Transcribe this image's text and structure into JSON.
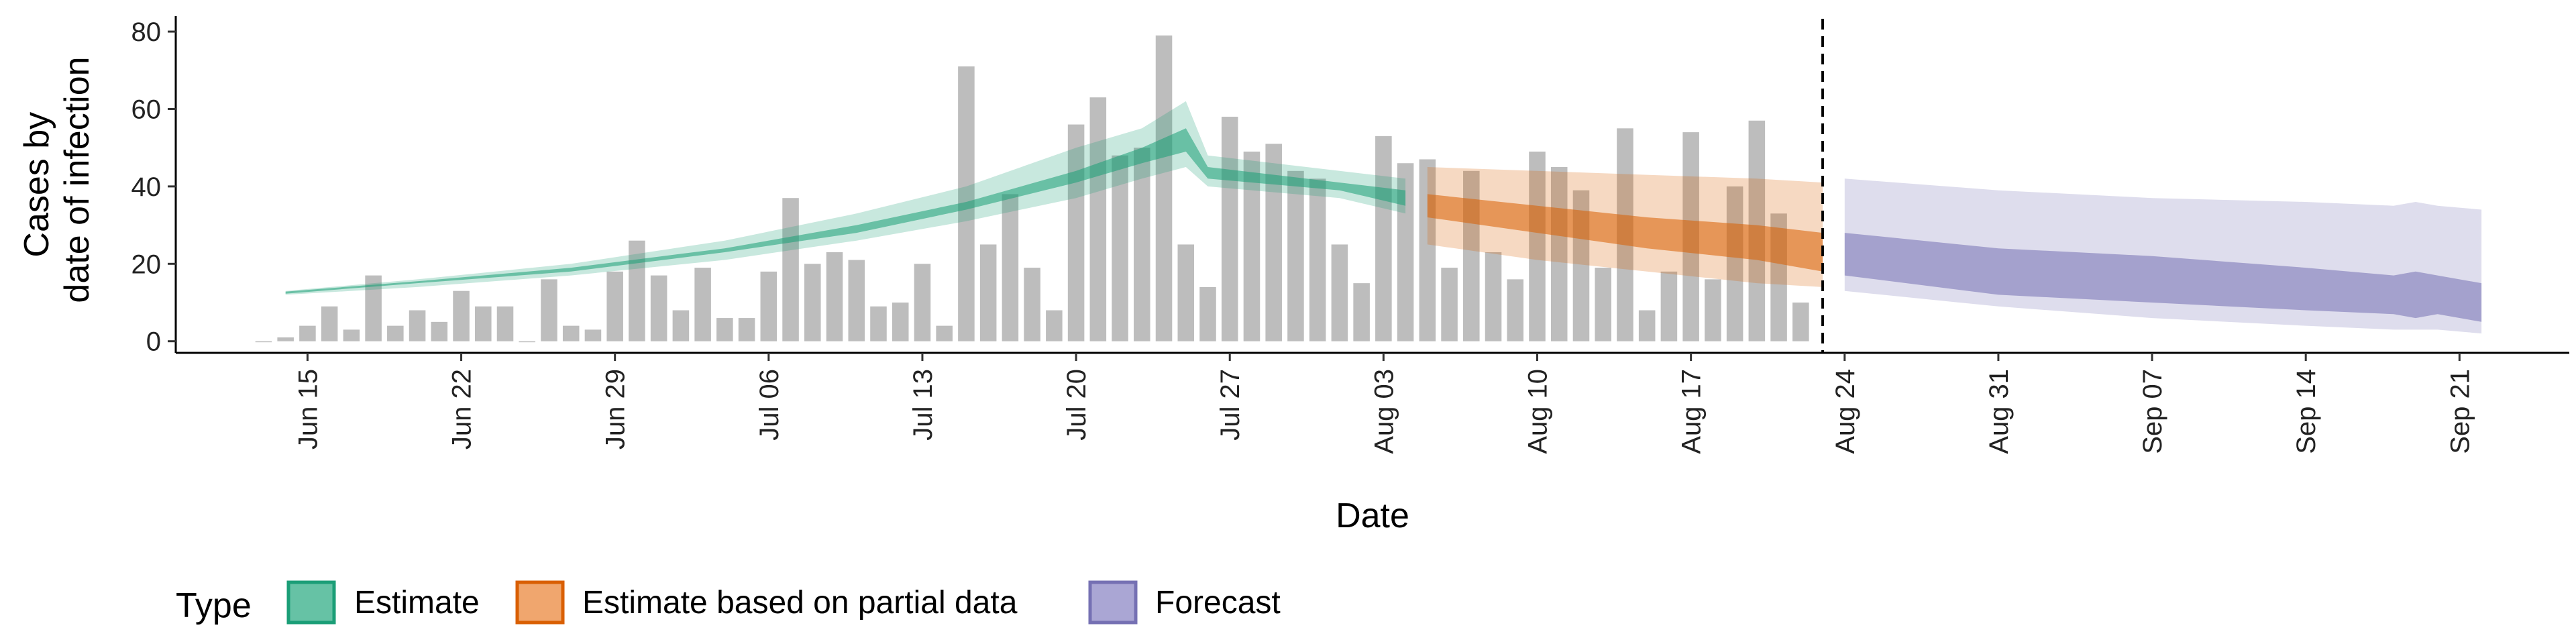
{
  "chart_data": {
    "type": "bar",
    "xlabel": "Date",
    "ylabel_lines": [
      "Cases by",
      "date of infection"
    ],
    "x_range": [
      "2020-06-09",
      "2020-09-26"
    ],
    "ylim": [
      -3,
      84
    ],
    "y_ticks": [
      0,
      20,
      40,
      60,
      80
    ],
    "x_ticks": [
      {
        "date": "2020-06-15",
        "label": "Jun 15"
      },
      {
        "date": "2020-06-22",
        "label": "Jun 22"
      },
      {
        "date": "2020-06-29",
        "label": "Jun 29"
      },
      {
        "date": "2020-07-06",
        "label": "Jul 06"
      },
      {
        "date": "2020-07-13",
        "label": "Jul 13"
      },
      {
        "date": "2020-07-20",
        "label": "Jul 20"
      },
      {
        "date": "2020-07-27",
        "label": "Jul 27"
      },
      {
        "date": "2020-08-03",
        "label": "Aug 03"
      },
      {
        "date": "2020-08-10",
        "label": "Aug 10"
      },
      {
        "date": "2020-08-17",
        "label": "Aug 17"
      },
      {
        "date": "2020-08-24",
        "label": "Aug 24"
      },
      {
        "date": "2020-08-31",
        "label": "Aug 31"
      },
      {
        "date": "2020-09-07",
        "label": "Sep 07"
      },
      {
        "date": "2020-09-14",
        "label": "Sep 14"
      },
      {
        "date": "2020-09-21",
        "label": "Sep 21"
      }
    ],
    "grid": false,
    "legend_position": "bottom-left",
    "legend_title": "Type",
    "legend": [
      {
        "label": "Estimate",
        "fill": "#66c2a5",
        "stroke": "#1b9e77"
      },
      {
        "label": "Estimate based on partial data",
        "fill": "#f0a66e",
        "stroke": "#d95f02"
      },
      {
        "label": "Forecast",
        "fill": "#aaa6d4",
        "stroke": "#7570b3"
      }
    ],
    "vline_date": "2020-08-23",
    "bar_color": "#bdbdbd",
    "reported_cases": {
      "start_date": "2020-06-13",
      "values": [
        0,
        1,
        4,
        9,
        3,
        17,
        4,
        8,
        5,
        13,
        9,
        9,
        0,
        16,
        4,
        3,
        18,
        26,
        17,
        8,
        19,
        6,
        6,
        18,
        37,
        20,
        23,
        21,
        9,
        10,
        20,
        4,
        71,
        25,
        38,
        19,
        8,
        56,
        63,
        48,
        50,
        79,
        25,
        14,
        58,
        49,
        51,
        44,
        42,
        25,
        15,
        53,
        46,
        47,
        19,
        44,
        23,
        16,
        49,
        45,
        39,
        19,
        55,
        8,
        18,
        54,
        16,
        40,
        57,
        33,
        10
      ]
    },
    "estimate": {
      "color": "#1b9e77",
      "dates": [
        "2020-06-14",
        "2020-06-20",
        "2020-06-27",
        "2020-07-04",
        "2020-07-10",
        "2020-07-15",
        "2020-07-20",
        "2020-07-23",
        "2020-07-25",
        "2020-07-26",
        "2020-08-01",
        "2020-08-04"
      ],
      "outer_lower": [
        12,
        14,
        17,
        21,
        26,
        31,
        37,
        42,
        45,
        40,
        37,
        33
      ],
      "outer_upper": [
        13,
        16,
        20,
        26,
        33,
        40,
        50,
        55,
        62,
        48,
        44,
        42
      ],
      "inner_lower": [
        12.3,
        15,
        18,
        23,
        28,
        34,
        41,
        46,
        49,
        42,
        39,
        35
      ],
      "inner_upper": [
        12.8,
        15.5,
        19,
        24,
        30,
        36,
        44,
        50,
        55,
        45,
        41,
        39
      ]
    },
    "partial_estimate": {
      "color": "#d95f02",
      "dates": [
        "2020-08-05",
        "2020-08-10",
        "2020-08-15",
        "2020-08-20",
        "2020-08-23"
      ],
      "outer_lower": [
        25,
        21,
        18,
        15,
        14
      ],
      "outer_upper": [
        45,
        44,
        43,
        42,
        41
      ],
      "inner_lower": [
        32,
        28,
        24,
        21,
        18
      ],
      "inner_upper": [
        38,
        35,
        32,
        30,
        28
      ]
    },
    "forecast": {
      "color": "#7570b3",
      "dates": [
        "2020-08-24",
        "2020-08-31",
        "2020-09-07",
        "2020-09-14",
        "2020-09-18",
        "2020-09-19",
        "2020-09-20",
        "2020-09-22"
      ],
      "outer_lower": [
        13,
        9,
        6,
        4,
        3,
        3,
        3,
        2
      ],
      "outer_upper": [
        42,
        39,
        37,
        36,
        35,
        36,
        35,
        34
      ],
      "inner_lower": [
        17,
        12,
        10,
        8,
        7,
        6,
        7,
        5
      ],
      "inner_upper": [
        28,
        24,
        22,
        19,
        17,
        18,
        17,
        15
      ]
    }
  }
}
